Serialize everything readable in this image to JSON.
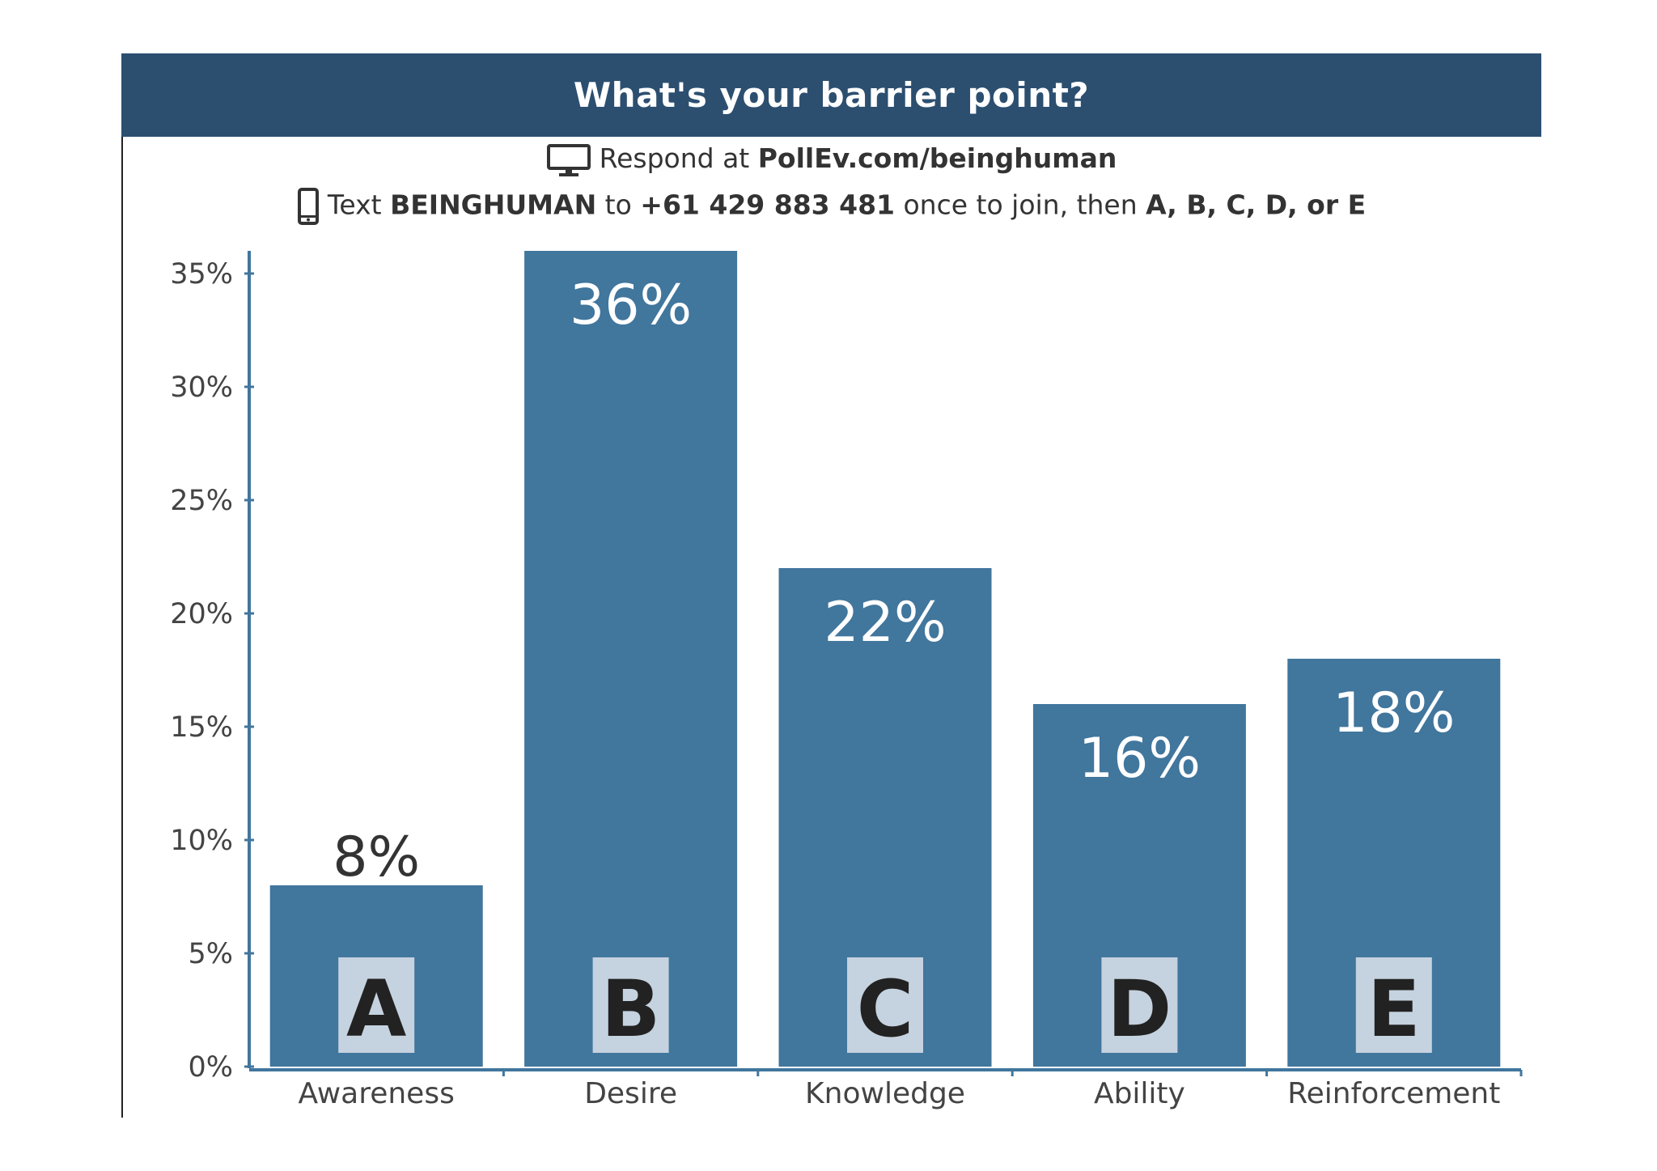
{
  "header": {
    "title": "What's your barrier point?"
  },
  "instructions": {
    "line1_prefix": "Respond at ",
    "line1_url": "PollEv.com/beinghuman",
    "line2_text": "Text ",
    "line2_keyword": "BEINGHUMAN",
    "line2_to": " to ",
    "line2_phone": "+61 429 883 481",
    "line2_join": " once to join, then ",
    "line2_options": "A, B, C, D, or E",
    "icon1": "monitor-icon",
    "icon2": "phone-icon"
  },
  "chart_data": {
    "type": "bar",
    "categories": [
      "Awareness",
      "Desire",
      "Knowledge",
      "Ability",
      "Reinforcement"
    ],
    "letters": [
      "A",
      "B",
      "C",
      "D",
      "E"
    ],
    "values": [
      8,
      36,
      22,
      16,
      18
    ],
    "value_labels": [
      "8%",
      "36%",
      "22%",
      "16%",
      "18%"
    ],
    "ylim": [
      0,
      36
    ],
    "yticks": [
      0,
      5,
      10,
      15,
      20,
      25,
      30,
      35
    ],
    "ytick_labels": [
      "0%",
      "5%",
      "10%",
      "15%",
      "20%",
      "25%",
      "30%",
      "35%"
    ],
    "bar_color": "#41769d",
    "axis_color": "#41769d",
    "letter_box_color": "#c5d2df",
    "grid": false
  }
}
